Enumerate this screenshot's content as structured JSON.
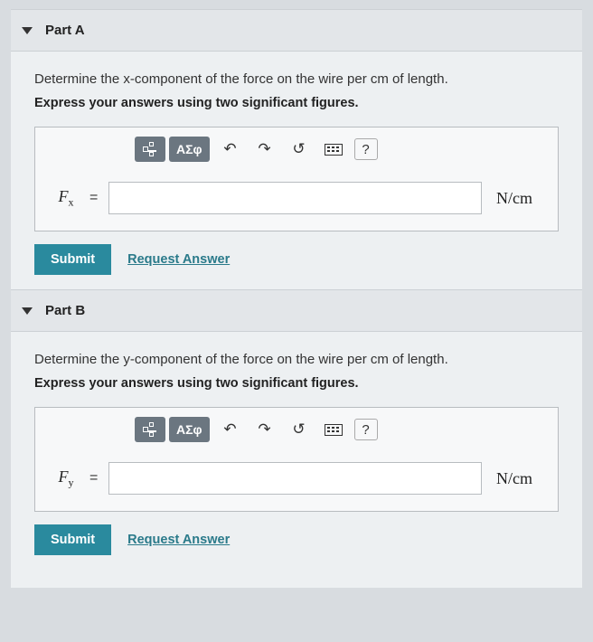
{
  "colors": {
    "page_bg": "#d8dce0",
    "panel_bg": "#edf0f2",
    "header_bg": "#e3e6e9",
    "border": "#b8bcc0",
    "toolbar_btn": "#6b7680",
    "submit_btn": "#2a8a9e",
    "link": "#2a7a8a"
  },
  "partA": {
    "title": "Part A",
    "question": "Determine the x-component of the force on the wire per cm of length.",
    "instruction": "Express your answers using two significant figures.",
    "var_html": "F<sub>x</sub>",
    "eq": "=",
    "value": "",
    "unit": "N/cm",
    "submit": "Submit",
    "request": "Request Answer"
  },
  "partB": {
    "title": "Part B",
    "question": "Determine the y-component of the force on the wire per cm of length.",
    "instruction": "Express your answers using two significant figures.",
    "var_html": "F<sub>y</sub>",
    "eq": "=",
    "value": "",
    "unit": "N/cm",
    "submit": "Submit",
    "request": "Request Answer"
  },
  "toolbar": {
    "greek": "ΑΣφ",
    "undo": "↶",
    "redo": "↷",
    "reset": "↺",
    "help": "?"
  }
}
